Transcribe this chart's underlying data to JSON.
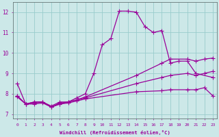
{
  "bg_color": "#cce8e8",
  "grid_color": "#99cccc",
  "line_color": "#990099",
  "xlabel": "Windchill (Refroidissement éolien,°C)",
  "xlim": [
    -0.5,
    23.5
  ],
  "ylim": [
    6.8,
    12.5
  ],
  "xticks": [
    0,
    1,
    2,
    3,
    4,
    5,
    6,
    7,
    8,
    9,
    10,
    11,
    12,
    13,
    14,
    15,
    16,
    17,
    18,
    19,
    20,
    21,
    22,
    23
  ],
  "yticks": [
    7,
    8,
    9,
    10,
    11,
    12
  ],
  "line1_x": [
    0,
    1,
    2,
    3,
    4,
    5,
    6,
    7,
    8,
    9,
    10,
    11,
    12,
    13,
    14,
    15,
    16,
    17,
    18,
    19,
    20,
    21,
    23
  ],
  "line1_y": [
    8.5,
    7.5,
    7.6,
    7.6,
    7.4,
    7.6,
    7.6,
    7.8,
    8.0,
    9.0,
    10.4,
    10.7,
    12.05,
    12.05,
    12.0,
    11.3,
    11.0,
    11.1,
    9.5,
    9.6,
    9.6,
    9.0,
    8.8
  ],
  "line2_x": [
    0,
    1,
    2,
    3,
    4,
    5,
    6,
    7,
    8,
    14,
    17,
    18,
    20,
    21,
    22,
    23
  ],
  "line2_y": [
    7.9,
    7.5,
    7.6,
    7.6,
    7.35,
    7.55,
    7.6,
    7.7,
    7.85,
    8.9,
    9.5,
    9.7,
    9.7,
    9.6,
    9.7,
    9.75
  ],
  "line3_x": [
    0,
    1,
    2,
    3,
    4,
    5,
    6,
    7,
    8,
    14,
    17,
    18,
    20,
    21,
    22,
    23
  ],
  "line3_y": [
    7.9,
    7.5,
    7.55,
    7.6,
    7.35,
    7.5,
    7.6,
    7.7,
    7.8,
    8.5,
    8.8,
    8.9,
    9.0,
    8.9,
    9.0,
    9.1
  ],
  "line4_x": [
    0,
    1,
    2,
    3,
    4,
    5,
    6,
    7,
    8,
    14,
    17,
    18,
    20,
    21,
    22,
    23
  ],
  "line4_y": [
    7.85,
    7.5,
    7.5,
    7.55,
    7.35,
    7.5,
    7.55,
    7.65,
    7.75,
    8.1,
    8.15,
    8.2,
    8.2,
    8.2,
    8.3,
    7.9
  ]
}
